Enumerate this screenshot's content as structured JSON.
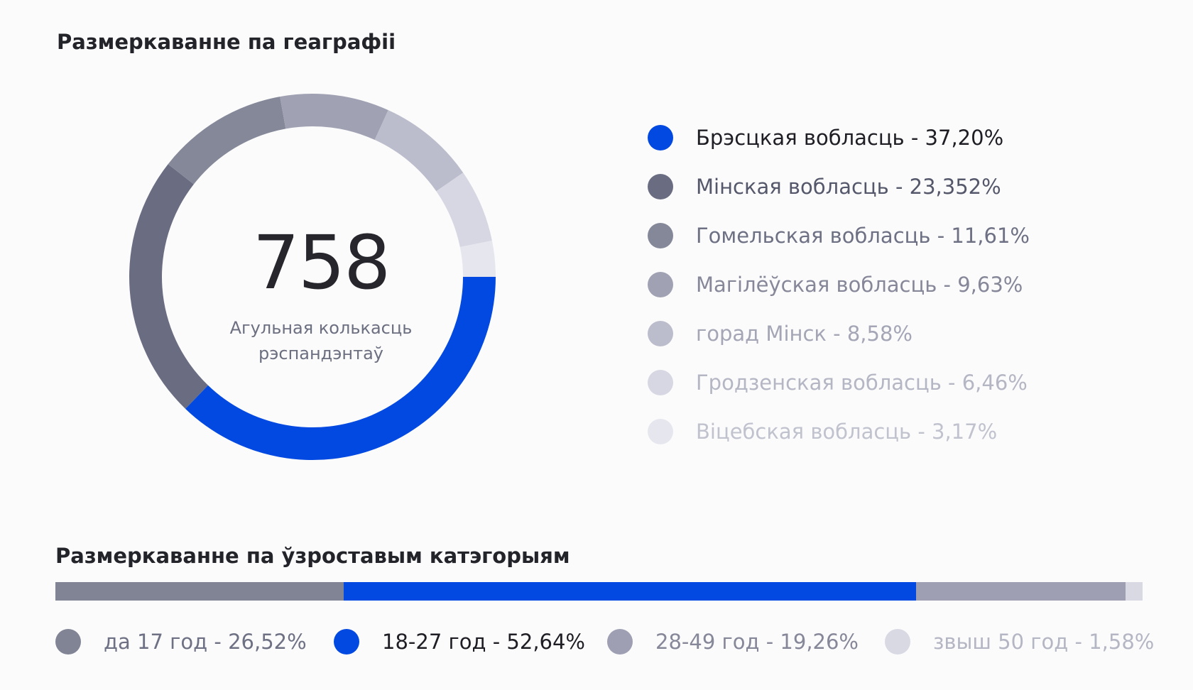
{
  "geo": {
    "title": "Размеркаванне па геаграфіі",
    "total": "758",
    "total_label_line1": "Агульная колькасць",
    "total_label_line2": "рэспандэнтаў"
  },
  "age": {
    "title": "Размеркаванне па ўзроставым катэгорыям"
  },
  "chart_data": [
    {
      "type": "pie",
      "title": "Размеркаванне па геаграфіі",
      "center_value": "758",
      "center_label": "Агульная колькасць рэспандэнтаў",
      "categories": [
        "Брэсцкая вобласць",
        "Мінская вобласць",
        "Гомельская вобласць",
        "Магілёўская вобласць",
        "горад Мінск",
        "Гродзенская вобласць",
        "Віцебская вобласць"
      ],
      "values": [
        37.2,
        23.352,
        11.61,
        9.63,
        8.58,
        6.46,
        3.17
      ],
      "labels": [
        "Брэсцкая вобласць - 37,20%",
        "Мінская вобласць - 23,352%",
        "Гомельская вобласць - 11,61%",
        "Магілёўская вобласць - 9,63%",
        "горад Мінск - 8,58%",
        "Гродзенская вобласць - 6,46%",
        "Віцебская вобласць - 3,17%"
      ],
      "colors": [
        "#0249e1",
        "#6a6d82",
        "#858898",
        "#a0a2b3",
        "#bcbdcc",
        "#d6d7e2",
        "#e6e7ee"
      ],
      "text_colors": [
        "#1e1e24",
        "#55586b",
        "#6e7184",
        "#868899",
        "#a4a6b6",
        "#b4b6c4",
        "#c0c2ce"
      ],
      "legend": "right"
    },
    {
      "type": "bar",
      "orientation": "horizontal-stacked",
      "title": "Размеркаванне па ўзроставым катэгорыям",
      "categories": [
        "да 17 год",
        "18-27 год",
        "28-49 год",
        "звыш 50 год"
      ],
      "values": [
        26.52,
        52.64,
        19.26,
        1.58
      ],
      "labels": [
        "да 17 год - 26,52%",
        "18-27 год - 52,64%",
        "28-49 год - 19,26%",
        "звыш 50 год - 1,58%"
      ],
      "colors": [
        "#818494",
        "#0249e1",
        "#9e9fb2",
        "#d8d9e3"
      ],
      "text_colors": [
        "#6e7184",
        "#1e1e24",
        "#868899",
        "#b4b6c4"
      ],
      "legend": "bottom"
    }
  ]
}
